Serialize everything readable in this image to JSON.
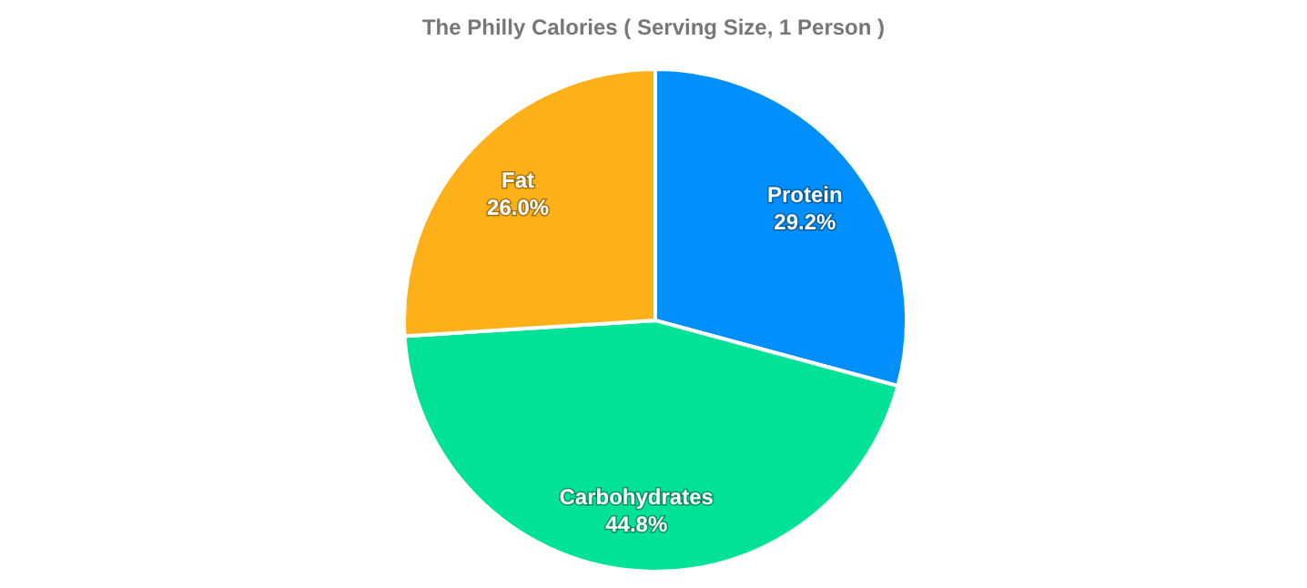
{
  "chart_data": {
    "type": "pie",
    "title": "The Philly Calories ( Serving Size, 1 Person )",
    "categories": [
      "Protein",
      "Carbohydrates",
      "Fat"
    ],
    "values": [
      29.2,
      44.8,
      26.0
    ],
    "value_labels": [
      "29.2%",
      "44.8%",
      "26.0%"
    ],
    "colors": [
      "#008ffb",
      "#00e396",
      "#feb019"
    ],
    "legend": false
  }
}
